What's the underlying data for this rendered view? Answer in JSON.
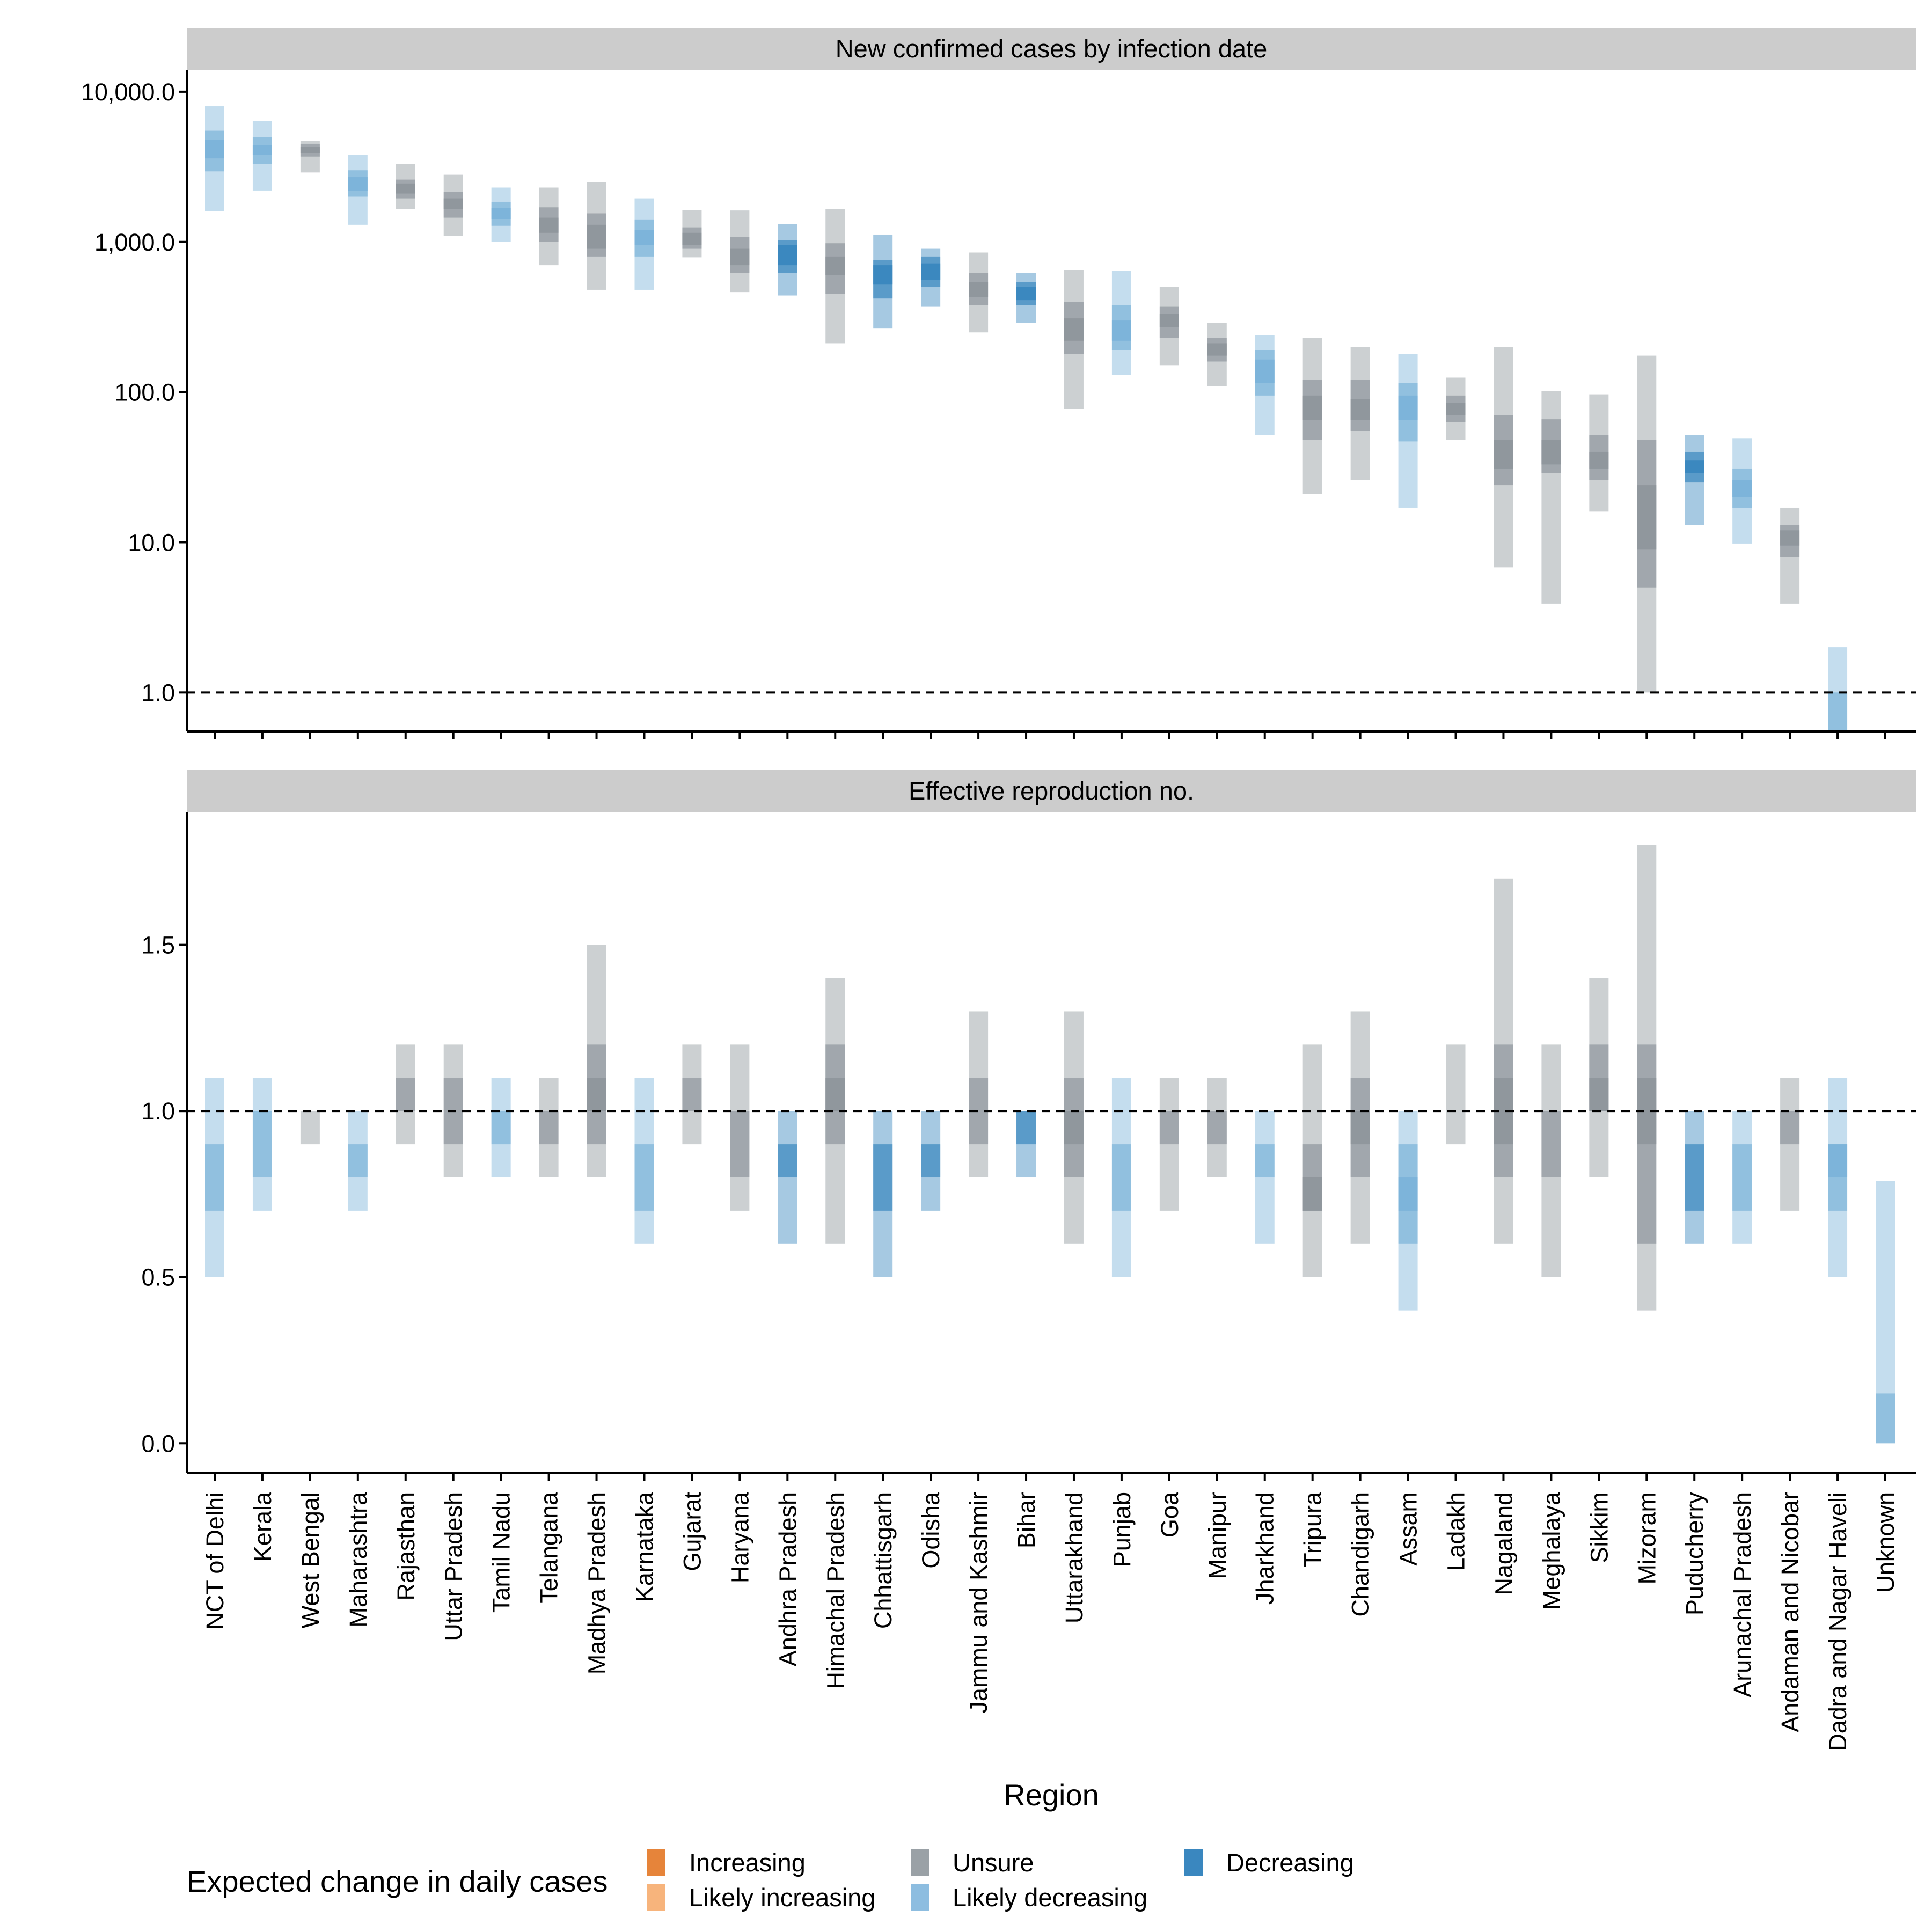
{
  "chart_data": {
    "type": "range-bar",
    "xlabel": "Region",
    "categories": [
      "NCT of Delhi",
      "Kerala",
      "West Bengal",
      "Maharashtra",
      "Rajasthan",
      "Uttar Pradesh",
      "Tamil Nadu",
      "Telangana",
      "Madhya Pradesh",
      "Karnataka",
      "Gujarat",
      "Haryana",
      "Andhra Pradesh",
      "Himachal Pradesh",
      "Chhattisgarh",
      "Odisha",
      "Jammu and Kashmir",
      "Bihar",
      "Uttarakhand",
      "Punjab",
      "Goa",
      "Manipur",
      "Jharkhand",
      "Tripura",
      "Chandigarh",
      "Assam",
      "Ladakh",
      "Nagaland",
      "Meghalaya",
      "Sikkim",
      "Mizoram",
      "Puducherry",
      "Arunachal Pradesh",
      "Andaman and Nicobar",
      "Dadra and Nagar Haveli",
      "Unknown"
    ],
    "status": [
      "Likely decreasing",
      "Likely decreasing",
      "Unsure",
      "Likely decreasing",
      "Unsure",
      "Unsure",
      "Likely decreasing",
      "Unsure",
      "Unsure",
      "Likely decreasing",
      "Unsure",
      "Unsure",
      "Decreasing",
      "Unsure",
      "Decreasing",
      "Decreasing",
      "Unsure",
      "Decreasing",
      "Unsure",
      "Likely decreasing",
      "Unsure",
      "Unsure",
      "Likely decreasing",
      "Unsure",
      "Unsure",
      "Likely decreasing",
      "Unsure",
      "Unsure",
      "Unsure",
      "Unsure",
      "Unsure",
      "Decreasing",
      "Likely decreasing",
      "Unsure",
      "Likely decreasing",
      "Likely decreasing"
    ],
    "status_colors": {
      "Increasing": "#e6843a",
      "Likely increasing": "#f7b47c",
      "Unsure": "#8f969c",
      "Likely decreasing": "#7cb3d9",
      "Decreasing": "#3a87bf"
    },
    "panels": [
      {
        "title": "New confirmed cases by infection date",
        "yscale": "log",
        "ylim": [
          0.55,
          14000
        ],
        "yticks": [
          1,
          10,
          100,
          1000,
          10000
        ],
        "ytick_labels": [
          "1.0",
          "10.0",
          "100.0",
          "1,000.0",
          "10,000.0"
        ],
        "reference_line": 1,
        "intervals": [
          [
            [
              1600,
              8000
            ],
            [
              2950,
              5500
            ],
            [
              3600,
              4800
            ]
          ],
          [
            [
              2200,
              6400
            ],
            [
              3300,
              5000
            ],
            [
              3800,
              4400
            ]
          ],
          [
            [
              2900,
              4700
            ],
            [
              3700,
              4500
            ],
            [
              3900,
              4300
            ]
          ],
          [
            [
              1300,
              3800
            ],
            [
              2000,
              3000
            ],
            [
              2200,
              2700
            ]
          ],
          [
            [
              1650,
              3300
            ],
            [
              1950,
              2600
            ],
            [
              2100,
              2450
            ]
          ],
          [
            [
              1100,
              2800
            ],
            [
              1450,
              2150
            ],
            [
              1650,
              1950
            ]
          ],
          [
            [
              1000,
              2300
            ],
            [
              1280,
              1850
            ],
            [
              1420,
              1680
            ]
          ],
          [
            [
              700,
              2300
            ],
            [
              1000,
              1700
            ],
            [
              1150,
              1450
            ]
          ],
          [
            [
              480,
              2500
            ],
            [
              800,
              1550
            ],
            [
              900,
              1300
            ]
          ],
          [
            [
              480,
              1950
            ],
            [
              800,
              1400
            ],
            [
              950,
              1200
            ]
          ],
          [
            [
              790,
              1630
            ],
            [
              900,
              1250
            ],
            [
              950,
              1150
            ]
          ],
          [
            [
              460,
              1620
            ],
            [
              620,
              1080
            ],
            [
              700,
              900
            ]
          ],
          [
            [
              440,
              1320
            ],
            [
              620,
              1030
            ],
            [
              700,
              950
            ]
          ],
          [
            [
              210,
              1650
            ],
            [
              450,
              980
            ],
            [
              600,
              800
            ]
          ],
          [
            [
              265,
              1120
            ],
            [
              420,
              760
            ],
            [
              520,
              700
            ]
          ],
          [
            [
              370,
              900
            ],
            [
              500,
              800
            ],
            [
              560,
              720
            ]
          ],
          [
            [
              250,
              850
            ],
            [
              380,
              620
            ],
            [
              430,
              540
            ]
          ],
          [
            [
              290,
              620
            ],
            [
              380,
              540
            ],
            [
              410,
              500
            ]
          ],
          [
            [
              77,
              650
            ],
            [
              180,
              400
            ],
            [
              220,
              310
            ]
          ],
          [
            [
              130,
              640
            ],
            [
              190,
              380
            ],
            [
              220,
              300
            ]
          ],
          [
            [
              150,
              500
            ],
            [
              230,
              370
            ],
            [
              270,
              330
            ]
          ],
          [
            [
              110,
              290
            ],
            [
              160,
              230
            ],
            [
              175,
              210
            ]
          ],
          [
            [
              52,
              240
            ],
            [
              95,
              190
            ],
            [
              115,
              165
            ]
          ],
          [
            [
              21,
              230
            ],
            [
              48,
              120
            ],
            [
              65,
              95
            ]
          ],
          [
            [
              26,
              200
            ],
            [
              55,
              120
            ],
            [
              65,
              90
            ]
          ],
          [
            [
              17,
              180
            ],
            [
              47,
              115
            ],
            [
              65,
              95
            ]
          ],
          [
            [
              48,
              125
            ],
            [
              63,
              95
            ],
            [
              70,
              85
            ]
          ],
          [
            [
              6.8,
              200
            ],
            [
              24,
              70
            ],
            [
              31,
              48
            ]
          ],
          [
            [
              3.9,
              102
            ],
            [
              29,
              66
            ],
            [
              33,
              48
            ]
          ],
          [
            [
              16,
              96
            ],
            [
              26,
              52
            ],
            [
              31,
              40
            ]
          ],
          [
            [
              1.0,
              175
            ],
            [
              5.0,
              48
            ],
            [
              9.0,
              24
            ]
          ],
          [
            [
              13,
              52
            ],
            [
              25,
              40
            ],
            [
              29,
              35
            ]
          ],
          [
            [
              9.8,
              49
            ],
            [
              17,
              31
            ],
            [
              20,
              26
            ]
          ],
          [
            [
              3.9,
              17
            ],
            [
              8,
              13
            ],
            [
              9.5,
              12
            ]
          ],
          [
            [
              0.55,
              2.0
            ],
            [
              0.55,
              1.0
            ]
          ],
          []
        ]
      },
      {
        "title": "Effective reproduction no.",
        "yscale": "linear",
        "ylim": [
          -0.09,
          1.9
        ],
        "yticks": [
          0.0,
          0.5,
          1.0,
          1.5
        ],
        "ytick_labels": [
          "0.0",
          "0.5",
          "1.0",
          "1.5"
        ],
        "reference_line": 1,
        "intervals": [
          [
            [
              0.5,
              1.1
            ],
            [
              0.7,
              0.9
            ]
          ],
          [
            [
              0.7,
              1.1
            ],
            [
              0.8,
              1.0
            ]
          ],
          [
            [
              0.9,
              1.0
            ]
          ],
          [
            [
              0.7,
              1.0
            ],
            [
              0.8,
              0.9
            ]
          ],
          [
            [
              0.9,
              1.2
            ],
            [
              1.0,
              1.1
            ]
          ],
          [
            [
              0.8,
              1.2
            ],
            [
              0.9,
              1.1
            ]
          ],
          [
            [
              0.8,
              1.1
            ],
            [
              0.9,
              1.0
            ]
          ],
          [
            [
              0.8,
              1.1
            ],
            [
              0.9,
              1.0
            ]
          ],
          [
            [
              0.8,
              1.5
            ],
            [
              0.9,
              1.2
            ],
            [
              1.0,
              1.1
            ]
          ],
          [
            [
              0.6,
              1.1
            ],
            [
              0.7,
              0.9
            ]
          ],
          [
            [
              0.9,
              1.2
            ],
            [
              1.0,
              1.1
            ]
          ],
          [
            [
              0.7,
              1.2
            ],
            [
              0.8,
              1.0
            ]
          ],
          [
            [
              0.6,
              1.0
            ],
            [
              0.8,
              0.9
            ]
          ],
          [
            [
              0.6,
              1.4
            ],
            [
              0.9,
              1.2
            ],
            [
              1.0,
              1.1
            ]
          ],
          [
            [
              0.5,
              1.0
            ],
            [
              0.7,
              0.9
            ]
          ],
          [
            [
              0.7,
              1.0
            ],
            [
              0.8,
              0.9
            ]
          ],
          [
            [
              0.8,
              1.3
            ],
            [
              0.9,
              1.1
            ]
          ],
          [
            [
              0.8,
              1.0
            ],
            [
              0.9,
              1.0
            ]
          ],
          [
            [
              0.6,
              1.3
            ],
            [
              0.8,
              1.1
            ],
            [
              0.9,
              1.0
            ]
          ],
          [
            [
              0.5,
              1.1
            ],
            [
              0.7,
              0.9
            ]
          ],
          [
            [
              0.7,
              1.1
            ],
            [
              0.9,
              1.0
            ]
          ],
          [
            [
              0.8,
              1.1
            ],
            [
              0.9,
              1.0
            ]
          ],
          [
            [
              0.6,
              1.0
            ],
            [
              0.8,
              0.9
            ]
          ],
          [
            [
              0.5,
              1.2
            ],
            [
              0.7,
              0.9
            ],
            [
              0.7,
              0.8
            ]
          ],
          [
            [
              0.6,
              1.3
            ],
            [
              0.8,
              1.1
            ],
            [
              0.9,
              1.0
            ]
          ],
          [
            [
              0.4,
              1.0
            ],
            [
              0.6,
              0.9
            ],
            [
              0.7,
              0.8
            ]
          ],
          [
            [
              0.9,
              1.2
            ]
          ],
          [
            [
              0.6,
              1.7
            ],
            [
              0.8,
              1.2
            ],
            [
              0.9,
              1.1
            ]
          ],
          [
            [
              0.5,
              1.2
            ],
            [
              0.8,
              1.0
            ]
          ],
          [
            [
              0.8,
              1.4
            ],
            [
              1.0,
              1.2
            ],
            [
              1.0,
              1.1
            ]
          ],
          [
            [
              0.4,
              1.8
            ],
            [
              0.6,
              1.2
            ],
            [
              0.9,
              1.1
            ]
          ],
          [
            [
              0.6,
              1.0
            ],
            [
              0.7,
              0.9
            ]
          ],
          [
            [
              0.6,
              1.0
            ],
            [
              0.7,
              0.9
            ]
          ],
          [
            [
              0.7,
              1.1
            ],
            [
              0.9,
              1.0
            ]
          ],
          [
            [
              0.5,
              1.1
            ],
            [
              0.7,
              0.9
            ],
            [
              0.8,
              0.9
            ]
          ],
          [
            [
              0.0,
              0.79
            ],
            [
              0.0,
              0.15
            ]
          ]
        ]
      }
    ],
    "legend": {
      "title": "Expected change in daily cases",
      "entries": [
        "Increasing",
        "Likely increasing",
        "Unsure",
        "Likely decreasing",
        "Decreasing"
      ],
      "placement": "bottom"
    }
  }
}
